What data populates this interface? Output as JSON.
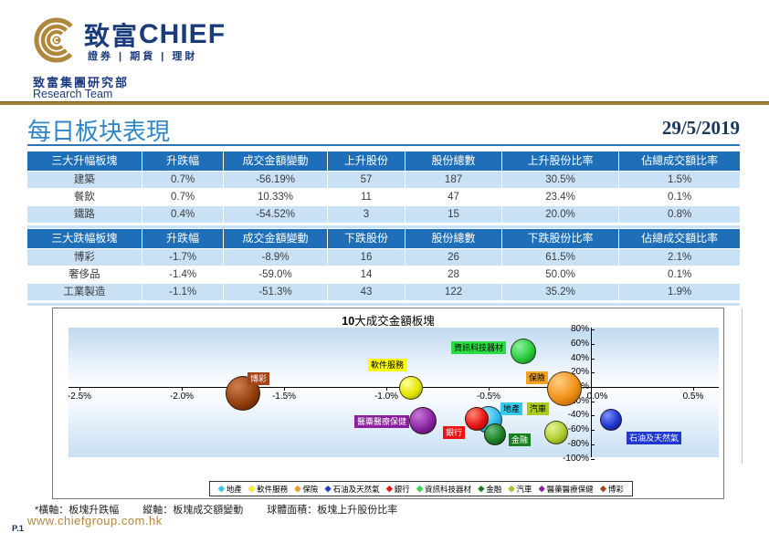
{
  "header": {
    "logo_cn": "致富",
    "logo_en": "CHIEF",
    "logo_tagline": "證券 | 期貨 | 理財",
    "dept_cn": "致富集團研究部",
    "dept_en": "Research Team"
  },
  "page": {
    "title": "每日板块表現",
    "date": "29/5/2019",
    "footnotes": [
      "*橫軸：板塊升跌幅",
      "縱軸：板塊成交額變動",
      "球體面積：板塊上升股份比率"
    ],
    "url": "www.chiefgroup.com.hk",
    "page_no": "P.1"
  },
  "colors": {
    "navy": "#1B3C7C",
    "gold": "#A5803A",
    "title_blue": "#2E86C8",
    "table_header_blue": "#1E6FB8",
    "row_alt_blue": "#C9E1F5"
  },
  "tables": [
    {
      "headers": [
        "三大升幅板塊",
        "升跌幅",
        "成交金額變動",
        "上升股份",
        "股份總數",
        "上升股份比率",
        "佔總成交額比率"
      ],
      "rows": [
        [
          "建築",
          "0.7%",
          "-56.19%",
          "57",
          "187",
          "30.5%",
          "1.5%"
        ],
        [
          "餐飲",
          "0.7%",
          "10.33%",
          "11",
          "47",
          "23.4%",
          "0.1%"
        ],
        [
          "鐵路",
          "0.4%",
          "-54.52%",
          "3",
          "15",
          "20.0%",
          "0.8%"
        ]
      ]
    },
    {
      "headers": [
        "三大跌幅板塊",
        "升跌幅",
        "成交金額變動",
        "下跌股份",
        "股份總數",
        "下跌股份比率",
        "佔總成交額比率"
      ],
      "rows": [
        [
          "博彩",
          "-1.7%",
          "-8.9%",
          "16",
          "26",
          "61.5%",
          "2.1%"
        ],
        [
          "奢侈品",
          "-1.4%",
          "-59.0%",
          "14",
          "28",
          "50.0%",
          "0.1%"
        ],
        [
          "工業製造",
          "-1.1%",
          "-51.3%",
          "43",
          "122",
          "35.2%",
          "1.9%"
        ]
      ]
    }
  ],
  "chart_data": {
    "type": "bubble",
    "title_num": "10",
    "title_text": "大成交金額板塊",
    "xlabel": "板塊升跌幅",
    "ylabel": "板塊成交額變動",
    "size_meaning": "板塊上升股份比率",
    "xlim": [
      -2.5,
      0.5
    ],
    "ylim": [
      -100,
      80
    ],
    "x_ticks": [
      "-2.5%",
      "-2.0%",
      "-1.5%",
      "-1.0%",
      "-0.5%",
      "0.0%",
      "0.5%"
    ],
    "x_tick_values": [
      -2.5,
      -2.0,
      -1.5,
      -1.0,
      -0.5,
      0.0,
      0.5
    ],
    "y_ticks": [
      "80%",
      "60%",
      "40%",
      "20%",
      "0%",
      "-20%",
      "-40%",
      "-60%",
      "-80%",
      "-100%"
    ],
    "y_tick_values": [
      80,
      60,
      40,
      20,
      0,
      -20,
      -40,
      -60,
      -80,
      -100
    ],
    "legend_marker": "◆",
    "series": [
      {
        "name": "地產",
        "x": -0.5,
        "y": -46,
        "r": 15,
        "base": "#2EB8E8",
        "light": "#A8ECFF",
        "dark": "#0C6E9E",
        "label_bg": "#33CCF0",
        "label_fg": "#000000"
      },
      {
        "name": "軟件服務",
        "x": -0.88,
        "y": -1,
        "r": 13,
        "base": "#E6E600",
        "light": "#FFFFA0",
        "dark": "#8F8F00",
        "label_bg": "#FFFF00",
        "label_fg": "#000000"
      },
      {
        "name": "保險",
        "x": -0.13,
        "y": -3,
        "r": 19,
        "base": "#F09018",
        "light": "#FFD080",
        "dark": "#8F5200",
        "label_bg": "#F5A121",
        "label_fg": "#000000"
      },
      {
        "name": "石油及天然氣",
        "x": 0.1,
        "y": -46,
        "r": 12,
        "base": "#2038D0",
        "light": "#8090F8",
        "dark": "#0A1468",
        "label_bg": "#2038D0",
        "label_fg": "#FFFFFF"
      },
      {
        "name": "銀行",
        "x": -0.56,
        "y": -45,
        "r": 13,
        "base": "#E81414",
        "light": "#FF8878",
        "dark": "#7A0404",
        "label_bg": "#EE1111",
        "label_fg": "#FFFFFF"
      },
      {
        "name": "資訊科技器材",
        "x": -0.33,
        "y": 50,
        "r": 14,
        "base": "#28CC3C",
        "light": "#90F0A0",
        "dark": "#0C6E1C",
        "label_bg": "#2ADD44",
        "label_fg": "#000000"
      },
      {
        "name": "金融",
        "x": -0.47,
        "y": -66,
        "r": 12,
        "base": "#1E8028",
        "light": "#70C080",
        "dark": "#083A10",
        "label_bg": "#177F20",
        "label_fg": "#FFFFFF"
      },
      {
        "name": "汽車",
        "x": -0.17,
        "y": -64,
        "r": 13,
        "base": "#AECE30",
        "light": "#E4F498",
        "dark": "#5E7A08",
        "label_bg": "#AACB22",
        "label_fg": "#000000"
      },
      {
        "name": "醫藥醫療保健",
        "x": -0.82,
        "y": -47,
        "r": 15,
        "base": "#8A24A0",
        "light": "#C878D8",
        "dark": "#3E0A50",
        "label_bg": "#8B1F9E",
        "label_fg": "#FFFFFF"
      },
      {
        "name": "博彩",
        "x": -1.7,
        "y": -8.9,
        "r": 19,
        "base": "#96400F",
        "light": "#D08050",
        "dark": "#451800",
        "label_bg": "#A3441A",
        "label_fg": "#FFFFFF"
      }
    ]
  }
}
